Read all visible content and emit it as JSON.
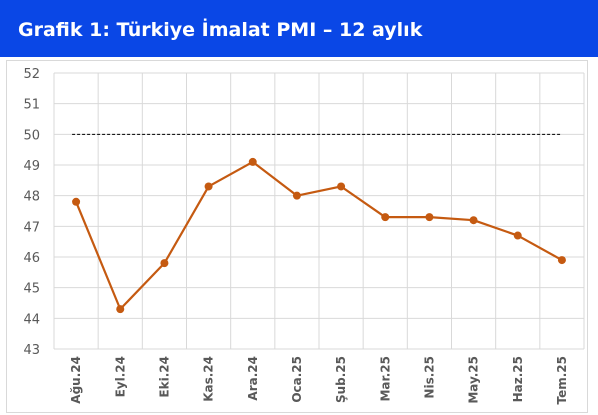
{
  "header": {
    "title": "Grafik 1: Türkiye İmalat PMI – 12 aylık"
  },
  "colors": {
    "header_bg": "#0a47e6",
    "series": "#c55a11",
    "grid": "#d9d9d9",
    "reference_line": "#000000",
    "tick_text": "#595959"
  },
  "chart_data": {
    "type": "line",
    "title": "Grafik 1: Türkiye İmalat PMI – 12 aylık",
    "categories": [
      "Ağu.24",
      "Eyl.24",
      "Eki.24",
      "Kas.24",
      "Ara.24",
      "Oca.25",
      "Şub.25",
      "Mar.25",
      "Nis.25",
      "May.25",
      "Haz.25",
      "Tem.25"
    ],
    "series": [
      {
        "values": [
          47.8,
          44.3,
          45.8,
          48.3,
          49.1,
          48.0,
          48.3,
          47.3,
          47.3,
          47.2,
          46.7,
          45.9
        ]
      }
    ],
    "reference_line": {
      "value": 50,
      "style": "dashed"
    },
    "ylim": [
      43,
      52
    ],
    "yticks": [
      "43",
      "44",
      "45",
      "46",
      "47",
      "48",
      "49",
      "50",
      "51",
      "52"
    ],
    "grid": true,
    "legend": "none",
    "xlabel": "",
    "ylabel": ""
  }
}
